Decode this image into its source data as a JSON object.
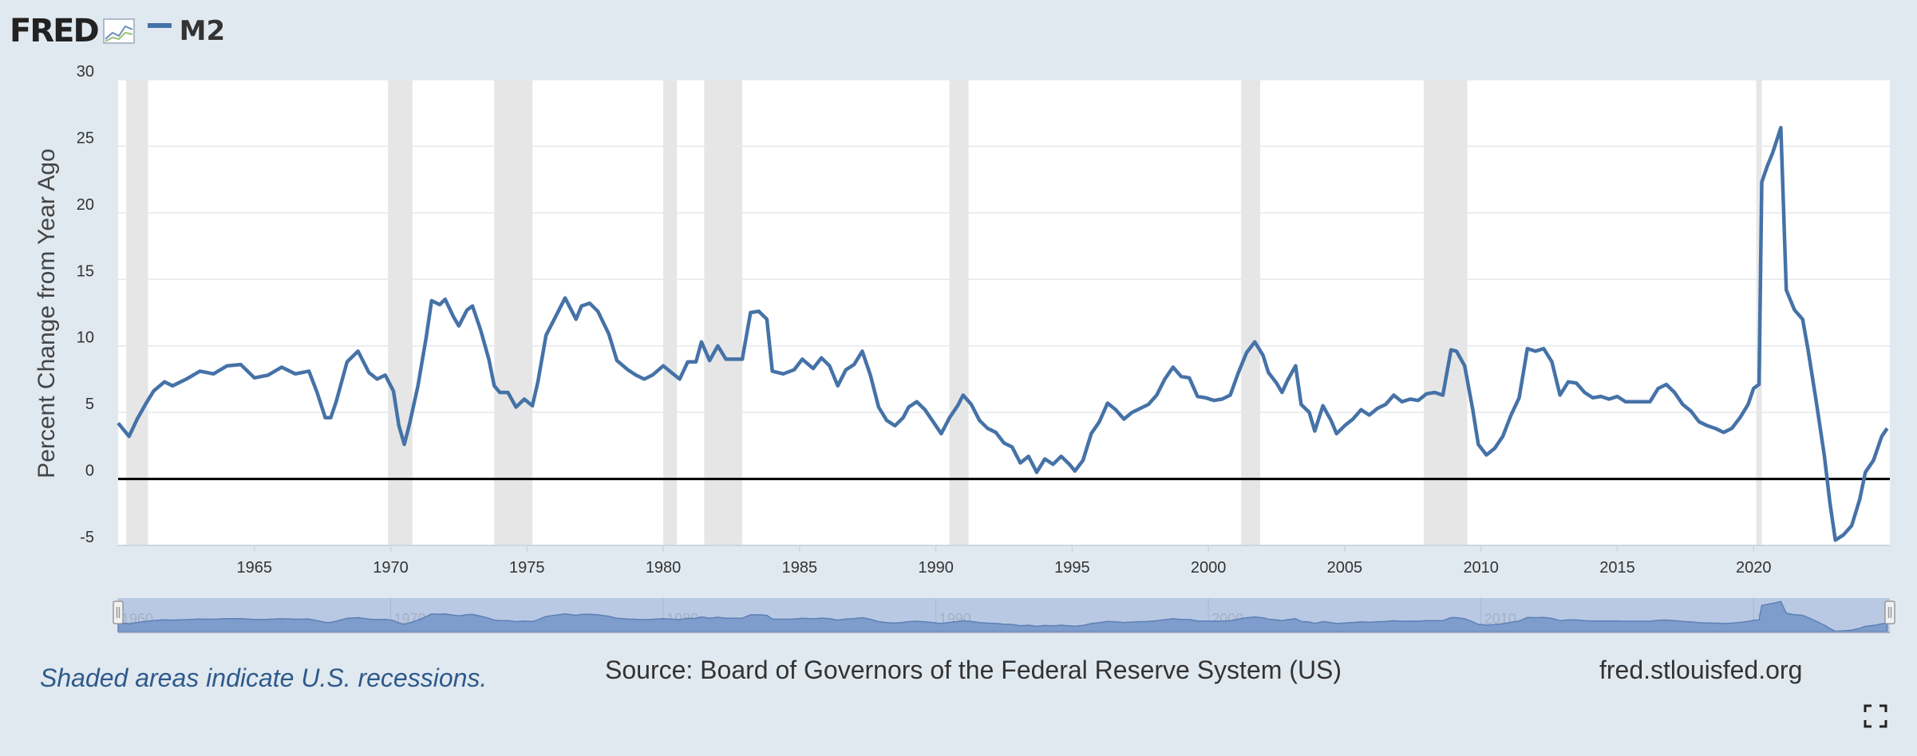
{
  "header": {
    "logo_text": "FRED",
    "series_label": "M2"
  },
  "chart_data": {
    "type": "line",
    "title": "",
    "xlabel": "",
    "ylabel": "Percent Change from Year Ago",
    "ylim": [
      -5,
      30
    ],
    "xlim": [
      1960.0,
      2025.0
    ],
    "yticks": [
      "30",
      "25",
      "20",
      "15",
      "10",
      "5",
      "0",
      "-5"
    ],
    "xticks": [
      "1965",
      "1970",
      "1975",
      "1980",
      "1985",
      "1990",
      "1995",
      "2000",
      "2005",
      "2010",
      "2015",
      "2020"
    ],
    "navigator_ticks": [
      "1960",
      "1970",
      "1980",
      "1990",
      "2000",
      "2010",
      "2020"
    ],
    "zero_line": 0,
    "grid": "horizontal",
    "recessions": [
      [
        1960.3,
        1961.1
      ],
      [
        1969.9,
        1970.8
      ],
      [
        1973.8,
        1975.2
      ],
      [
        1980.0,
        1980.5
      ],
      [
        1981.5,
        1982.9
      ],
      [
        1990.5,
        1991.2
      ],
      [
        2001.2,
        2001.9
      ],
      [
        2007.9,
        2009.5
      ],
      [
        2020.1,
        2020.3
      ]
    ],
    "series": [
      {
        "name": "M2",
        "color": "#4572a7",
        "points": [
          [
            1960.0,
            4.2
          ],
          [
            1960.4,
            3.2
          ],
          [
            1960.7,
            4.5
          ],
          [
            1961.0,
            5.6
          ],
          [
            1961.3,
            6.6
          ],
          [
            1961.7,
            7.3
          ],
          [
            1962.0,
            7.0
          ],
          [
            1962.5,
            7.5
          ],
          [
            1963.0,
            8.1
          ],
          [
            1963.5,
            7.9
          ],
          [
            1964.0,
            8.5
          ],
          [
            1964.5,
            8.6
          ],
          [
            1965.0,
            7.6
          ],
          [
            1965.5,
            7.8
          ],
          [
            1966.0,
            8.4
          ],
          [
            1966.5,
            7.9
          ],
          [
            1967.0,
            8.1
          ],
          [
            1967.3,
            6.5
          ],
          [
            1967.6,
            4.6
          ],
          [
            1967.8,
            4.6
          ],
          [
            1968.0,
            5.8
          ],
          [
            1968.4,
            8.8
          ],
          [
            1968.8,
            9.6
          ],
          [
            1969.2,
            8.0
          ],
          [
            1969.5,
            7.5
          ],
          [
            1969.8,
            7.8
          ],
          [
            1970.1,
            6.6
          ],
          [
            1970.3,
            4.0
          ],
          [
            1970.5,
            2.6
          ],
          [
            1970.7,
            4.2
          ],
          [
            1971.0,
            7.0
          ],
          [
            1971.3,
            10.6
          ],
          [
            1971.5,
            13.4
          ],
          [
            1971.8,
            13.1
          ],
          [
            1972.0,
            13.5
          ],
          [
            1972.3,
            12.2
          ],
          [
            1972.5,
            11.5
          ],
          [
            1972.8,
            12.7
          ],
          [
            1973.0,
            13.0
          ],
          [
            1973.3,
            11.2
          ],
          [
            1973.6,
            9.0
          ],
          [
            1973.8,
            7.0
          ],
          [
            1974.0,
            6.5
          ],
          [
            1974.3,
            6.5
          ],
          [
            1974.6,
            5.4
          ],
          [
            1974.9,
            6.0
          ],
          [
            1975.2,
            5.5
          ],
          [
            1975.4,
            7.3
          ],
          [
            1975.7,
            10.8
          ],
          [
            1976.0,
            12.0
          ],
          [
            1976.4,
            13.6
          ],
          [
            1976.8,
            12.0
          ],
          [
            1977.0,
            13.0
          ],
          [
            1977.3,
            13.2
          ],
          [
            1977.6,
            12.6
          ],
          [
            1978.0,
            10.9
          ],
          [
            1978.3,
            8.9
          ],
          [
            1978.7,
            8.2
          ],
          [
            1979.0,
            7.8
          ],
          [
            1979.3,
            7.5
          ],
          [
            1979.6,
            7.8
          ],
          [
            1980.0,
            8.5
          ],
          [
            1980.3,
            8.0
          ],
          [
            1980.6,
            7.5
          ],
          [
            1980.9,
            8.8
          ],
          [
            1981.2,
            8.8
          ],
          [
            1981.4,
            10.3
          ],
          [
            1981.7,
            8.9
          ],
          [
            1982.0,
            10.0
          ],
          [
            1982.3,
            9.0
          ],
          [
            1982.6,
            9.0
          ],
          [
            1982.9,
            9.0
          ],
          [
            1983.2,
            12.5
          ],
          [
            1983.5,
            12.6
          ],
          [
            1983.8,
            12.0
          ],
          [
            1984.0,
            8.1
          ],
          [
            1984.4,
            7.9
          ],
          [
            1984.8,
            8.2
          ],
          [
            1985.1,
            9.0
          ],
          [
            1985.5,
            8.3
          ],
          [
            1985.8,
            9.1
          ],
          [
            1986.1,
            8.5
          ],
          [
            1986.4,
            7.0
          ],
          [
            1986.7,
            8.2
          ],
          [
            1987.0,
            8.6
          ],
          [
            1987.3,
            9.6
          ],
          [
            1987.6,
            7.8
          ],
          [
            1987.9,
            5.4
          ],
          [
            1988.2,
            4.4
          ],
          [
            1988.5,
            4.0
          ],
          [
            1988.8,
            4.6
          ],
          [
            1989.0,
            5.4
          ],
          [
            1989.3,
            5.8
          ],
          [
            1989.6,
            5.2
          ],
          [
            1989.9,
            4.3
          ],
          [
            1990.2,
            3.4
          ],
          [
            1990.5,
            4.6
          ],
          [
            1990.8,
            5.5
          ],
          [
            1991.0,
            6.3
          ],
          [
            1991.3,
            5.6
          ],
          [
            1991.6,
            4.4
          ],
          [
            1991.9,
            3.8
          ],
          [
            1992.2,
            3.5
          ],
          [
            1992.5,
            2.7
          ],
          [
            1992.8,
            2.4
          ],
          [
            1993.1,
            1.2
          ],
          [
            1993.4,
            1.7
          ],
          [
            1993.7,
            0.5
          ],
          [
            1994.0,
            1.5
          ],
          [
            1994.3,
            1.1
          ],
          [
            1994.6,
            1.7
          ],
          [
            1994.9,
            1.1
          ],
          [
            1995.1,
            0.6
          ],
          [
            1995.4,
            1.4
          ],
          [
            1995.7,
            3.4
          ],
          [
            1996.0,
            4.3
          ],
          [
            1996.3,
            5.7
          ],
          [
            1996.6,
            5.2
          ],
          [
            1996.9,
            4.5
          ],
          [
            1997.2,
            5.0
          ],
          [
            1997.5,
            5.3
          ],
          [
            1997.8,
            5.6
          ],
          [
            1998.1,
            6.3
          ],
          [
            1998.4,
            7.5
          ],
          [
            1998.7,
            8.4
          ],
          [
            1999.0,
            7.7
          ],
          [
            1999.3,
            7.6
          ],
          [
            1999.6,
            6.2
          ],
          [
            1999.9,
            6.1
          ],
          [
            2000.2,
            5.9
          ],
          [
            2000.5,
            6.0
          ],
          [
            2000.8,
            6.3
          ],
          [
            2001.1,
            8.0
          ],
          [
            2001.4,
            9.5
          ],
          [
            2001.7,
            10.3
          ],
          [
            2002.0,
            9.3
          ],
          [
            2002.2,
            8.0
          ],
          [
            2002.5,
            7.2
          ],
          [
            2002.7,
            6.5
          ],
          [
            2002.9,
            7.4
          ],
          [
            2003.2,
            8.5
          ],
          [
            2003.4,
            5.6
          ],
          [
            2003.7,
            5.0
          ],
          [
            2003.9,
            3.6
          ],
          [
            2004.2,
            5.5
          ],
          [
            2004.5,
            4.4
          ],
          [
            2004.7,
            3.4
          ],
          [
            2005.0,
            4.0
          ],
          [
            2005.3,
            4.5
          ],
          [
            2005.6,
            5.2
          ],
          [
            2005.9,
            4.8
          ],
          [
            2006.2,
            5.3
          ],
          [
            2006.5,
            5.6
          ],
          [
            2006.8,
            6.3
          ],
          [
            2007.1,
            5.8
          ],
          [
            2007.4,
            6.0
          ],
          [
            2007.7,
            5.9
          ],
          [
            2008.0,
            6.4
          ],
          [
            2008.3,
            6.5
          ],
          [
            2008.6,
            6.3
          ],
          [
            2008.9,
            9.7
          ],
          [
            2009.1,
            9.6
          ],
          [
            2009.4,
            8.5
          ],
          [
            2009.7,
            5.2
          ],
          [
            2009.9,
            2.6
          ],
          [
            2010.2,
            1.8
          ],
          [
            2010.5,
            2.3
          ],
          [
            2010.8,
            3.2
          ],
          [
            2011.1,
            4.8
          ],
          [
            2011.4,
            6.1
          ],
          [
            2011.7,
            9.8
          ],
          [
            2012.0,
            9.6
          ],
          [
            2012.3,
            9.8
          ],
          [
            2012.6,
            8.8
          ],
          [
            2012.9,
            6.3
          ],
          [
            2013.2,
            7.3
          ],
          [
            2013.5,
            7.2
          ],
          [
            2013.8,
            6.5
          ],
          [
            2014.1,
            6.1
          ],
          [
            2014.4,
            6.2
          ],
          [
            2014.7,
            6.0
          ],
          [
            2015.0,
            6.2
          ],
          [
            2015.3,
            5.8
          ],
          [
            2015.6,
            5.8
          ],
          [
            2015.9,
            5.8
          ],
          [
            2016.2,
            5.8
          ],
          [
            2016.5,
            6.8
          ],
          [
            2016.8,
            7.1
          ],
          [
            2017.1,
            6.5
          ],
          [
            2017.4,
            5.6
          ],
          [
            2017.7,
            5.1
          ],
          [
            2018.0,
            4.3
          ],
          [
            2018.3,
            4.0
          ],
          [
            2018.6,
            3.8
          ],
          [
            2018.9,
            3.5
          ],
          [
            2019.2,
            3.8
          ],
          [
            2019.5,
            4.6
          ],
          [
            2019.8,
            5.6
          ],
          [
            2020.0,
            6.8
          ],
          [
            2020.2,
            7.1
          ],
          [
            2020.3,
            22.3
          ],
          [
            2020.5,
            23.5
          ],
          [
            2020.7,
            24.5
          ],
          [
            2021.0,
            26.4
          ],
          [
            2021.2,
            14.2
          ],
          [
            2021.5,
            12.7
          ],
          [
            2021.8,
            12.0
          ],
          [
            2022.0,
            9.7
          ],
          [
            2022.3,
            5.8
          ],
          [
            2022.6,
            1.7
          ],
          [
            2022.8,
            -1.8
          ],
          [
            2023.0,
            -4.6
          ],
          [
            2023.3,
            -4.2
          ],
          [
            2023.6,
            -3.5
          ],
          [
            2023.9,
            -1.5
          ],
          [
            2024.1,
            0.5
          ],
          [
            2024.4,
            1.4
          ],
          [
            2024.7,
            3.2
          ],
          [
            2024.9,
            3.8
          ]
        ]
      }
    ]
  },
  "footer": {
    "note": "Shaded areas indicate U.S. recessions.",
    "source": "Source: Board of Governors of the Federal Reserve System (US)",
    "url": "fred.stlouisfed.org"
  },
  "icons": {
    "logo_graph": "line-chart-icon",
    "fullscreen": "fullscreen-icon"
  }
}
